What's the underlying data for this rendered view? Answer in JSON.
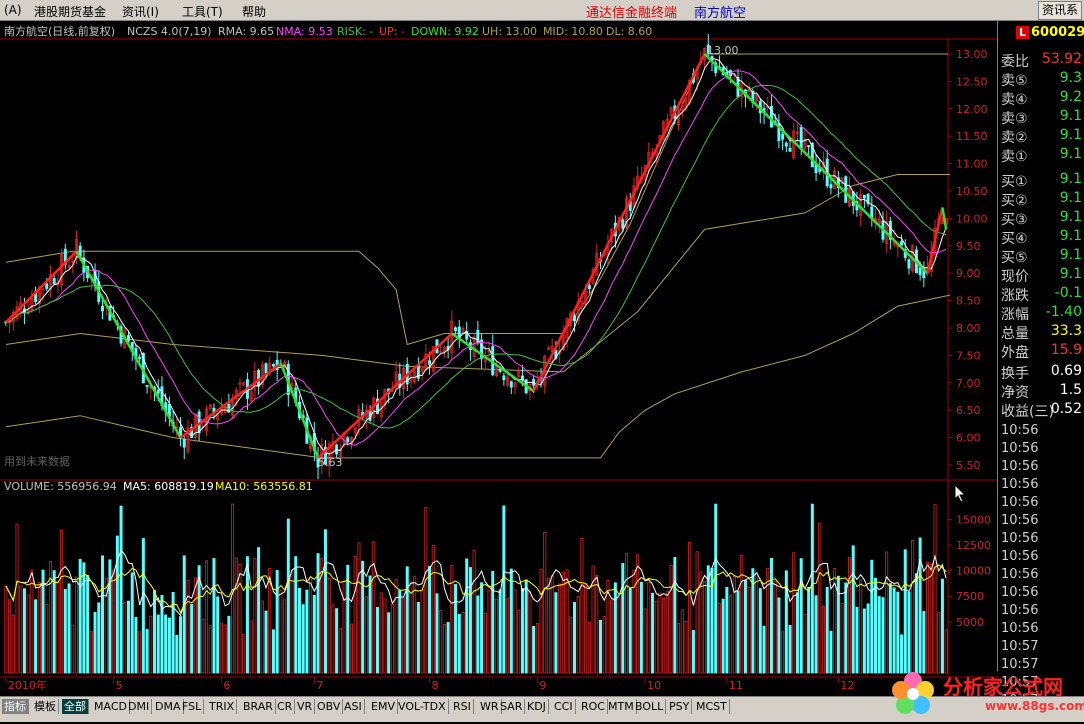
{
  "menubar": {
    "items": [
      "(A)",
      "港股期货基金",
      "资讯(I)",
      "工具(T)",
      "帮助"
    ],
    "title": "通达信金融终端",
    "stock": "南方航空",
    "right_button": "资讯系"
  },
  "colors": {
    "up": "#e02020",
    "down": "#54ffff",
    "zig_up": "#ff2020",
    "zig_down": "#30e030",
    "ma1": "#ffffff",
    "ma2": "#ff40ff",
    "ma3": "#40c040",
    "band": "#b0a050"
  },
  "main_panel": {
    "header": {
      "name": "南方航空(日线,前复权)",
      "indicator": "NCZS 4.0(7,19)",
      "rma": "RMA: 9.65",
      "nma": "NMA: 9.53",
      "risk": "RISK: -",
      "up": "UP: -",
      "down": "DOWN: 9.92",
      "uh": "UH: 13.00",
      "mid": "MID: 10.80",
      "dl": "DL: 8.60"
    },
    "watermark": "用到未来数据",
    "high_label": "13.00",
    "low_label": "5.63"
  },
  "volume_panel": {
    "header": {
      "volume": "VOLUME: 556956.94",
      "ma5": "MA5: 608819.19",
      "ma10": "MA10: 563556.81"
    }
  },
  "chart_data": [
    {
      "type": "candlestick",
      "title": "南方航空(日线,前复权)",
      "ylim": [
        5.3,
        13.2
      ],
      "y_ticks": [
        "13.00",
        "12.50",
        "12.00",
        "11.50",
        "11.00",
        "10.50",
        "10.00",
        "9.50",
        "9.00",
        "8.50",
        "8.00",
        "7.50",
        "7.00",
        "6.50",
        "6.00",
        "5.50"
      ],
      "x_labels": [
        "2010年",
        "5",
        "6",
        "7",
        "8",
        "9",
        "10",
        "11",
        "12"
      ],
      "x_label_index": [
        0,
        29,
        58,
        83,
        114,
        143,
        172,
        194,
        224
      ],
      "total_bars": 254,
      "zigzag": [
        {
          "i": 0,
          "v": 8.1
        },
        {
          "i": 19,
          "v": 9.4
        },
        {
          "i": 47,
          "v": 6.0
        },
        {
          "i": 74,
          "v": 7.35
        },
        {
          "i": 84,
          "v": 5.63
        },
        {
          "i": 120,
          "v": 7.9
        },
        {
          "i": 142,
          "v": 6.85
        },
        {
          "i": 188,
          "v": 13.0
        },
        {
          "i": 248,
          "v": 9.0
        },
        {
          "i": 252,
          "v": 10.2
        },
        {
          "i": 253,
          "v": 9.8
        }
      ],
      "upper_band": [
        {
          "i": 0,
          "v": 9.2
        },
        {
          "i": 18,
          "v": 9.4
        },
        {
          "i": 95,
          "v": 9.4
        },
        {
          "i": 100,
          "v": 9.1
        },
        {
          "i": 105,
          "v": 8.7
        },
        {
          "i": 108,
          "v": 7.7
        },
        {
          "i": 118,
          "v": 7.9
        },
        {
          "i": 150,
          "v": 7.9
        },
        {
          "i": 160,
          "v": 8.9
        },
        {
          "i": 168,
          "v": 9.9
        },
        {
          "i": 188,
          "v": 13.0
        },
        {
          "i": 254,
          "v": 13.0
        }
      ],
      "lower_band": [
        {
          "i": 0,
          "v": 6.2
        },
        {
          "i": 20,
          "v": 6.4
        },
        {
          "i": 45,
          "v": 6.0
        },
        {
          "i": 85,
          "v": 5.63
        },
        {
          "i": 160,
          "v": 5.63
        },
        {
          "i": 165,
          "v": 6.1
        },
        {
          "i": 172,
          "v": 6.5
        },
        {
          "i": 180,
          "v": 6.8
        },
        {
          "i": 198,
          "v": 7.2
        },
        {
          "i": 215,
          "v": 7.5
        },
        {
          "i": 228,
          "v": 7.9
        },
        {
          "i": 240,
          "v": 8.4
        },
        {
          "i": 254,
          "v": 8.6
        }
      ],
      "mid_band": [
        {
          "i": 0,
          "v": 7.7
        },
        {
          "i": 20,
          "v": 7.9
        },
        {
          "i": 45,
          "v": 7.7
        },
        {
          "i": 85,
          "v": 7.5
        },
        {
          "i": 108,
          "v": 7.3
        },
        {
          "i": 150,
          "v": 7.2
        },
        {
          "i": 170,
          "v": 8.3
        },
        {
          "i": 188,
          "v": 9.8
        },
        {
          "i": 215,
          "v": 10.1
        },
        {
          "i": 228,
          "v": 10.6
        },
        {
          "i": 240,
          "v": 10.8
        },
        {
          "i": 254,
          "v": 10.8
        }
      ]
    },
    {
      "type": "bar",
      "title": "VOLUME",
      "ylim": [
        0,
        17000
      ],
      "y_ticks": [
        "15000",
        "12500",
        "10000",
        "7500",
        "5000"
      ],
      "series": [
        {
          "name": "VOLUME",
          "last": 556956.94
        },
        {
          "name": "MA5",
          "last": 608819.19
        },
        {
          "name": "MA10",
          "last": 563556.81
        }
      ]
    }
  ],
  "sidebar": {
    "code": "600029",
    "code_badge": "L",
    "rows": [
      {
        "label": "委比",
        "value": "53.92",
        "color": "#ff3030"
      },
      {
        "label": "卖⑤",
        "value": "9.3",
        "color": "#30e030"
      },
      {
        "label": "卖④",
        "value": "9.2",
        "color": "#30e030"
      },
      {
        "label": "卖③",
        "value": "9.1",
        "color": "#30e030"
      },
      {
        "label": "卖②",
        "value": "9.1",
        "color": "#30e030"
      },
      {
        "label": "卖①",
        "value": "9.1",
        "color": "#30e030"
      },
      {
        "label": "买①",
        "value": "9.1",
        "color": "#30e030"
      },
      {
        "label": "买②",
        "value": "9.1",
        "color": "#30e030"
      },
      {
        "label": "买③",
        "value": "9.1",
        "color": "#30e030"
      },
      {
        "label": "买④",
        "value": "9.1",
        "color": "#30e030"
      },
      {
        "label": "买⑤",
        "value": "9.1",
        "color": "#30e030"
      },
      {
        "label": "现价",
        "value": "9.1",
        "color": "#30e030"
      },
      {
        "label": "涨跌",
        "value": "-0.1",
        "color": "#30e030"
      },
      {
        "label": "涨幅",
        "value": "-1.40",
        "color": "#30e030"
      },
      {
        "label": "总量",
        "value": "33.3",
        "color": "#ffff00"
      },
      {
        "label": "外盘",
        "value": "15.9",
        "color": "#ff3030"
      },
      {
        "label": "换手",
        "value": "0.69",
        "color": "#ffffff"
      },
      {
        "label": "净资",
        "value": "1.5",
        "color": "#ffffff"
      },
      {
        "label": "收益(三)",
        "value": "0.52",
        "color": "#ffffff"
      }
    ],
    "times": [
      "10:56",
      "10:56",
      "10:56",
      "10:56",
      "10:56",
      "10:56",
      "10:56",
      "10:56",
      "10:56",
      "10:56",
      "10:56",
      "10:56",
      "10:57",
      "10:57",
      "10:57",
      "10:57"
    ]
  },
  "tabs": [
    "指标",
    "模板",
    "全部",
    "MACD",
    "DMI",
    "DMA",
    "FSL",
    "TRIX",
    "BRAR",
    "CR",
    "VR",
    "OBV",
    "ASI",
    "EMV",
    "VOL-TDX",
    "RSI",
    "WR",
    "SAR",
    "KDJ",
    "CCI",
    "ROC",
    "MTM",
    "BOLL",
    "PSY",
    "MCST"
  ],
  "logo": {
    "title": "分析家公式网",
    "url": "www.88gs.com"
  }
}
